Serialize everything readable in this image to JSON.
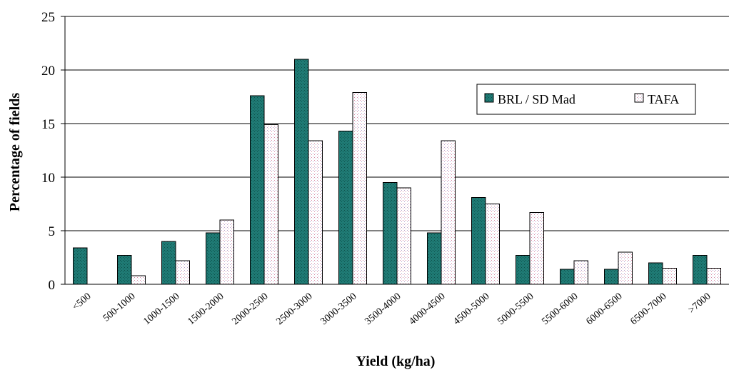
{
  "chart_data": {
    "type": "bar",
    "xlabel": "Yield (kg/ha)",
    "ylabel": "Percentage of fields",
    "ylim": [
      0,
      25
    ],
    "yticks": [
      0,
      5,
      10,
      15,
      20,
      25
    ],
    "grid": true,
    "legend_position": "right",
    "categories": [
      "<500",
      "500-1000",
      "1000-1500",
      "1500-2000",
      "2000-2500",
      "2500-3000",
      "3000-3500",
      "3500-4000",
      "4000-4500",
      "4500-5000",
      "5000-5500",
      "5500-6000",
      "6000-6500",
      "6500-7000",
      ">7000"
    ],
    "series": [
      {
        "name": "BRL / SD Mad",
        "color": "#1f7a74",
        "values": [
          3.4,
          2.7,
          4.0,
          4.8,
          17.6,
          21.0,
          14.3,
          9.5,
          4.8,
          8.1,
          2.7,
          1.4,
          1.4,
          2.0,
          2.7
        ]
      },
      {
        "name": "TAFA",
        "color": "#ffffff",
        "values": [
          0,
          0.8,
          2.2,
          6.0,
          14.9,
          13.4,
          17.9,
          9.0,
          13.4,
          7.5,
          6.7,
          2.2,
          3.0,
          1.5,
          1.5
        ]
      }
    ]
  }
}
